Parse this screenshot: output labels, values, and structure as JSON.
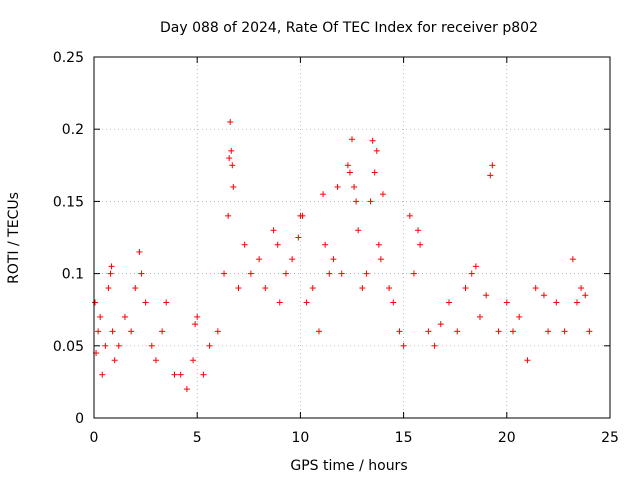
{
  "chart_data": {
    "type": "scatter",
    "title": "Day 088 of 2024, Rate Of TEC Index for receiver p802",
    "xlabel": "GPS time / hours",
    "ylabel": "ROTI / TECUs",
    "xlim": [
      0,
      25
    ],
    "ylim": [
      0,
      0.25
    ],
    "xticks": [
      0,
      5,
      10,
      15,
      20,
      25
    ],
    "xtick_labels": [
      "0",
      "5",
      "10",
      "15",
      "20",
      "25"
    ],
    "yticks": [
      0,
      0.05,
      0.1,
      0.15,
      0.2,
      0.25
    ],
    "ytick_labels": [
      "0",
      "0.05",
      "0.1",
      "0.15",
      "0.2",
      "0.25"
    ],
    "grid": true,
    "marker": "+",
    "color": "#ff0000",
    "series": [
      {
        "name": "ROTI",
        "x": [
          0.05,
          0.1,
          0.2,
          0.3,
          0.4,
          0.55,
          0.7,
          0.8,
          0.85,
          0.9,
          1.0,
          1.2,
          1.5,
          1.8,
          2.0,
          2.2,
          2.3,
          2.5,
          2.8,
          3.0,
          3.3,
          3.5,
          3.9,
          4.2,
          4.5,
          4.8,
          4.9,
          5.0,
          5.3,
          5.6,
          6.0,
          6.3,
          6.5,
          6.55,
          6.6,
          6.65,
          6.7,
          6.75,
          7.0,
          7.3,
          7.6,
          8.0,
          8.3,
          8.7,
          8.9,
          9.0,
          9.3,
          9.6,
          9.9,
          10.0,
          10.1,
          10.3,
          10.6,
          10.9,
          11.1,
          11.2,
          11.4,
          11.6,
          11.8,
          12.0,
          12.3,
          12.4,
          12.5,
          12.6,
          12.7,
          12.8,
          13.0,
          13.2,
          13.4,
          13.5,
          13.6,
          13.7,
          13.8,
          13.9,
          14.0,
          14.3,
          14.5,
          14.8,
          15.0,
          15.3,
          15.5,
          15.7,
          15.8,
          16.2,
          16.5,
          16.8,
          17.2,
          17.6,
          18.0,
          18.3,
          18.5,
          18.7,
          19.0,
          19.2,
          19.3,
          19.6,
          20.0,
          20.3,
          20.6,
          21.0,
          21.4,
          21.8,
          22.0,
          22.4,
          22.8,
          23.2,
          23.4,
          23.6,
          23.8,
          24.0
        ],
        "y": [
          0.08,
          0.045,
          0.06,
          0.07,
          0.03,
          0.05,
          0.09,
          0.1,
          0.105,
          0.06,
          0.04,
          0.05,
          0.07,
          0.06,
          0.09,
          0.115,
          0.1,
          0.08,
          0.05,
          0.04,
          0.06,
          0.08,
          0.03,
          0.03,
          0.02,
          0.04,
          0.065,
          0.07,
          0.03,
          0.05,
          0.06,
          0.1,
          0.14,
          0.18,
          0.205,
          0.185,
          0.175,
          0.16,
          0.09,
          0.12,
          0.1,
          0.11,
          0.09,
          0.13,
          0.12,
          0.08,
          0.1,
          0.11,
          0.125,
          0.14,
          0.14,
          0.08,
          0.09,
          0.06,
          0.155,
          0.12,
          0.1,
          0.11,
          0.16,
          0.1,
          0.175,
          0.17,
          0.193,
          0.16,
          0.15,
          0.13,
          0.09,
          0.1,
          0.15,
          0.192,
          0.17,
          0.185,
          0.12,
          0.11,
          0.155,
          0.09,
          0.08,
          0.06,
          0.05,
          0.14,
          0.1,
          0.13,
          0.12,
          0.06,
          0.05,
          0.065,
          0.08,
          0.06,
          0.09,
          0.1,
          0.105,
          0.07,
          0.085,
          0.168,
          0.175,
          0.06,
          0.08,
          0.06,
          0.07,
          0.04,
          0.09,
          0.085,
          0.06,
          0.08,
          0.06,
          0.11,
          0.08,
          0.09,
          0.085,
          0.06
        ]
      }
    ]
  }
}
